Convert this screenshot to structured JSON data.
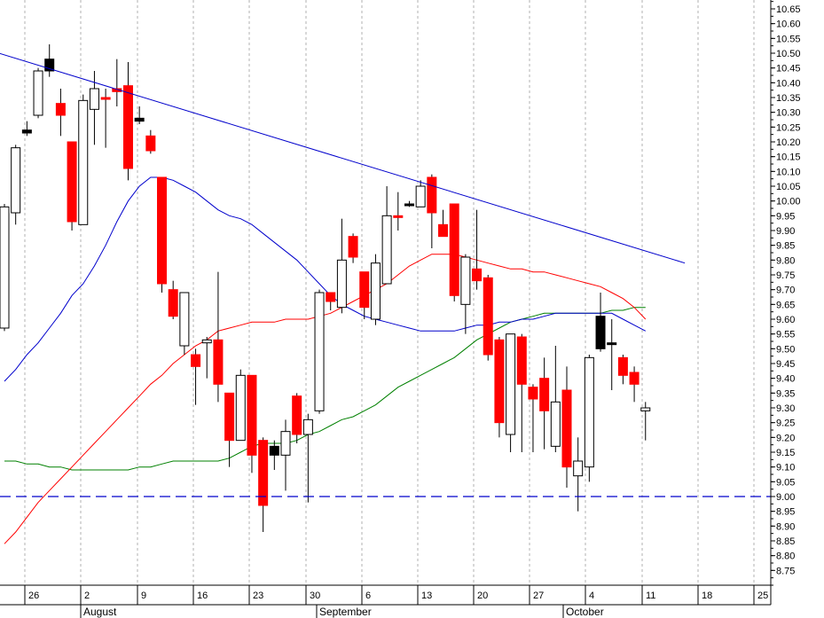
{
  "chart_data": {
    "type": "candlestick",
    "title": "",
    "xlabel": "",
    "ylabel": "",
    "ylim": [
      8.7,
      10.68
    ],
    "grid": {
      "vertical": true,
      "horizontal": false,
      "style": "dotted"
    },
    "y_ticks": [
      "10.65",
      "10.60",
      "10.55",
      "10.50",
      "10.45",
      "10.40",
      "10.35",
      "10.30",
      "10.25",
      "10.20",
      "10.15",
      "10.10",
      "10.05",
      "10.00",
      "9.95",
      "9.90",
      "9.85",
      "9.80",
      "9.75",
      "9.70",
      "9.65",
      "9.60",
      "9.55",
      "9.50",
      "9.45",
      "9.40",
      "9.35",
      "9.30",
      "9.25",
      "9.20",
      "9.15",
      "9.10",
      "9.05",
      "9.00",
      "8.95",
      "8.90",
      "8.85",
      "8.80",
      "8.75"
    ],
    "x_tick_labels": [
      "26",
      "2",
      "9",
      "16",
      "23",
      "30",
      "6",
      "13",
      "20",
      "27",
      "4",
      "11",
      "18",
      "25"
    ],
    "month_labels": [
      "August",
      "September",
      "October"
    ],
    "candles": [
      {
        "o": 9.57,
        "h": 9.99,
        "l": 9.56,
        "c": 9.98,
        "color": "white"
      },
      {
        "o": 9.96,
        "h": 10.19,
        "l": 9.92,
        "c": 10.18,
        "color": "white"
      },
      {
        "o": 10.24,
        "h": 10.27,
        "l": 10.22,
        "c": 10.23,
        "color": "black"
      },
      {
        "o": 10.29,
        "h": 10.45,
        "l": 10.28,
        "c": 10.44,
        "color": "white"
      },
      {
        "o": 10.44,
        "h": 10.53,
        "l": 10.42,
        "c": 10.48,
        "color": "black"
      },
      {
        "o": 10.33,
        "h": 10.38,
        "l": 10.22,
        "c": 10.29,
        "color": "red"
      },
      {
        "o": 10.2,
        "h": 10.2,
        "l": 9.9,
        "c": 9.93,
        "color": "red"
      },
      {
        "o": 9.92,
        "h": 10.36,
        "l": 9.92,
        "c": 10.34,
        "color": "white"
      },
      {
        "o": 10.31,
        "h": 10.44,
        "l": 10.19,
        "c": 10.38,
        "color": "white"
      },
      {
        "o": 10.35,
        "h": 10.38,
        "l": 10.18,
        "c": 10.35,
        "color": "red"
      },
      {
        "o": 10.37,
        "h": 10.48,
        "l": 10.32,
        "c": 10.38,
        "color": "red"
      },
      {
        "o": 10.39,
        "h": 10.47,
        "l": 10.07,
        "c": 10.11,
        "color": "red"
      },
      {
        "o": 10.28,
        "h": 10.32,
        "l": 10.26,
        "c": 10.27,
        "color": "black"
      },
      {
        "o": 10.22,
        "h": 10.24,
        "l": 10.16,
        "c": 10.17,
        "color": "red"
      },
      {
        "o": 10.08,
        "h": 10.08,
        "l": 9.69,
        "c": 9.72,
        "color": "red"
      },
      {
        "o": 9.7,
        "h": 9.73,
        "l": 9.6,
        "c": 9.61,
        "color": "red"
      },
      {
        "o": 9.69,
        "h": 9.69,
        "l": 9.48,
        "c": 9.51,
        "color": "white"
      },
      {
        "o": 9.48,
        "h": 9.5,
        "l": 9.31,
        "c": 9.44,
        "color": "red"
      },
      {
        "o": 9.52,
        "h": 9.54,
        "l": 9.4,
        "c": 9.53,
        "color": "white"
      },
      {
        "o": 9.53,
        "h": 9.76,
        "l": 9.32,
        "c": 9.38,
        "color": "red"
      },
      {
        "o": 9.35,
        "h": 9.35,
        "l": 9.1,
        "c": 9.19,
        "color": "red"
      },
      {
        "o": 9.19,
        "h": 9.43,
        "l": 9.19,
        "c": 9.41,
        "color": "white"
      },
      {
        "o": 9.41,
        "h": 9.41,
        "l": 9.08,
        "c": 9.14,
        "color": "red"
      },
      {
        "o": 9.19,
        "h": 9.2,
        "l": 8.88,
        "c": 8.97,
        "color": "red"
      },
      {
        "o": 9.17,
        "h": 9.19,
        "l": 9.09,
        "c": 9.14,
        "color": "black"
      },
      {
        "o": 9.14,
        "h": 9.26,
        "l": 9.02,
        "c": 9.22,
        "color": "white"
      },
      {
        "o": 9.34,
        "h": 9.35,
        "l": 9.18,
        "c": 9.21,
        "color": "red"
      },
      {
        "o": 9.21,
        "h": 9.28,
        "l": 8.98,
        "c": 9.26,
        "color": "white"
      },
      {
        "o": 9.29,
        "h": 9.7,
        "l": 9.28,
        "c": 9.69,
        "color": "white"
      },
      {
        "o": 9.69,
        "h": 9.69,
        "l": 9.63,
        "c": 9.66,
        "color": "red"
      },
      {
        "o": 9.64,
        "h": 9.94,
        "l": 9.62,
        "c": 9.8,
        "color": "white"
      },
      {
        "o": 9.88,
        "h": 9.89,
        "l": 9.79,
        "c": 9.81,
        "color": "red"
      },
      {
        "o": 9.76,
        "h": 9.76,
        "l": 9.6,
        "c": 9.64,
        "color": "red"
      },
      {
        "o": 9.6,
        "h": 9.82,
        "l": 9.58,
        "c": 9.79,
        "color": "white"
      },
      {
        "o": 9.72,
        "h": 10.05,
        "l": 9.72,
        "c": 9.95,
        "color": "white"
      },
      {
        "o": 9.95,
        "h": 10.03,
        "l": 9.9,
        "c": 9.95,
        "color": "red"
      },
      {
        "o": 9.99,
        "h": 10.0,
        "l": 9.98,
        "c": 9.99,
        "color": "black"
      },
      {
        "o": 9.98,
        "h": 10.07,
        "l": 9.98,
        "c": 10.05,
        "color": "white"
      },
      {
        "o": 10.08,
        "h": 10.09,
        "l": 9.84,
        "c": 9.96,
        "color": "red"
      },
      {
        "o": 9.92,
        "h": 9.97,
        "l": 9.89,
        "c": 9.88,
        "color": "red"
      },
      {
        "o": 9.99,
        "h": 9.99,
        "l": 9.66,
        "c": 9.68,
        "color": "red"
      },
      {
        "o": 9.65,
        "h": 9.82,
        "l": 9.55,
        "c": 9.81,
        "color": "white"
      },
      {
        "o": 9.73,
        "h": 9.97,
        "l": 9.7,
        "c": 9.77,
        "color": "red"
      },
      {
        "o": 9.74,
        "h": 9.75,
        "l": 9.46,
        "c": 9.48,
        "color": "red"
      },
      {
        "o": 9.53,
        "h": 9.54,
        "l": 9.2,
        "c": 9.25,
        "color": "red"
      },
      {
        "o": 9.21,
        "h": 9.55,
        "l": 9.15,
        "c": 9.55,
        "color": "white"
      },
      {
        "o": 9.54,
        "h": 9.55,
        "l": 9.15,
        "c": 9.38,
        "color": "red"
      },
      {
        "o": 9.37,
        "h": 9.38,
        "l": 9.15,
        "c": 9.33,
        "color": "red"
      },
      {
        "o": 9.4,
        "h": 9.47,
        "l": 9.16,
        "c": 9.29,
        "color": "red"
      },
      {
        "o": 9.17,
        "h": 9.51,
        "l": 9.15,
        "c": 9.32,
        "color": "white"
      },
      {
        "o": 9.36,
        "h": 9.44,
        "l": 9.03,
        "c": 9.1,
        "color": "red"
      },
      {
        "o": 9.07,
        "h": 9.2,
        "l": 8.95,
        "c": 9.12,
        "color": "white"
      },
      {
        "o": 9.1,
        "h": 9.48,
        "l": 9.05,
        "c": 9.47,
        "color": "white"
      },
      {
        "o": 9.5,
        "h": 9.69,
        "l": 9.49,
        "c": 9.61,
        "color": "black"
      },
      {
        "o": 9.52,
        "h": 9.6,
        "l": 9.36,
        "c": 9.52,
        "color": "black"
      },
      {
        "o": 9.47,
        "h": 9.48,
        "l": 9.38,
        "c": 9.41,
        "color": "red"
      },
      {
        "o": 9.42,
        "h": 9.44,
        "l": 9.32,
        "c": 9.38,
        "color": "red"
      },
      {
        "o": 9.3,
        "h": 9.32,
        "l": 9.19,
        "c": 9.29,
        "color": "white"
      }
    ],
    "blue_ma": [
      9.39,
      9.43,
      9.48,
      9.52,
      9.57,
      9.62,
      9.68,
      9.72,
      9.78,
      9.85,
      9.93,
      10.0,
      10.05,
      10.08,
      10.08,
      10.07,
      10.05,
      10.03,
      10.0,
      9.97,
      9.95,
      9.94,
      9.92,
      9.89,
      9.86,
      9.83,
      9.8,
      9.76,
      9.72,
      9.68,
      9.65,
      9.63,
      9.61,
      9.6,
      9.59,
      9.58,
      9.57,
      9.56,
      9.56,
      9.56,
      9.56,
      9.57,
      9.58,
      9.58,
      9.59,
      9.59,
      9.6,
      9.6,
      9.61,
      9.62,
      9.62,
      9.62,
      9.62,
      9.62,
      9.62,
      9.6,
      9.58,
      9.56
    ],
    "red_ma": [
      8.84,
      8.88,
      8.93,
      8.98,
      9.02,
      9.06,
      9.1,
      9.14,
      9.18,
      9.22,
      9.26,
      9.3,
      9.34,
      9.38,
      9.41,
      9.45,
      9.48,
      9.51,
      9.53,
      9.56,
      9.57,
      9.58,
      9.59,
      9.59,
      9.59,
      9.6,
      9.6,
      9.6,
      9.61,
      9.62,
      9.64,
      9.66,
      9.68,
      9.7,
      9.72,
      9.75,
      9.78,
      9.8,
      9.82,
      9.82,
      9.82,
      9.81,
      9.8,
      9.79,
      9.78,
      9.77,
      9.77,
      9.76,
      9.76,
      9.75,
      9.74,
      9.73,
      9.72,
      9.71,
      9.69,
      9.67,
      9.64,
      9.6
    ],
    "green_ma": [
      9.12,
      9.12,
      9.11,
      9.11,
      9.1,
      9.1,
      9.09,
      9.09,
      9.09,
      9.09,
      9.09,
      9.09,
      9.1,
      9.1,
      9.11,
      9.12,
      9.12,
      9.12,
      9.12,
      9.12,
      9.13,
      9.15,
      9.17,
      9.18,
      9.18,
      9.18,
      9.19,
      9.21,
      9.22,
      9.24,
      9.26,
      9.27,
      9.29,
      9.31,
      9.34,
      9.37,
      9.39,
      9.41,
      9.43,
      9.45,
      9.47,
      9.5,
      9.53,
      9.55,
      9.57,
      9.59,
      9.6,
      9.61,
      9.62,
      9.62,
      9.62,
      9.62,
      9.62,
      9.62,
      9.63,
      9.63,
      9.64,
      9.64
    ],
    "trendline": {
      "start": {
        "x_index": -0.5,
        "y": 10.5
      },
      "end": {
        "x_index": 60.5,
        "y": 9.79
      }
    },
    "support_line": {
      "y": 9.0,
      "style": "dashed"
    },
    "colors": {
      "background": "#ffffff",
      "up_candle_fill": "#ffffff",
      "down_candle_fill": "#ff0000",
      "black_candle_fill": "#000000",
      "wick": "#000000",
      "trendline": "#0000cc",
      "support_line": "#0000cc",
      "blue_ma": "#0000cc",
      "red_ma": "#ff0000",
      "green_ma": "#008000",
      "grid": "#b0b0b0",
      "axis": "#000000"
    }
  }
}
